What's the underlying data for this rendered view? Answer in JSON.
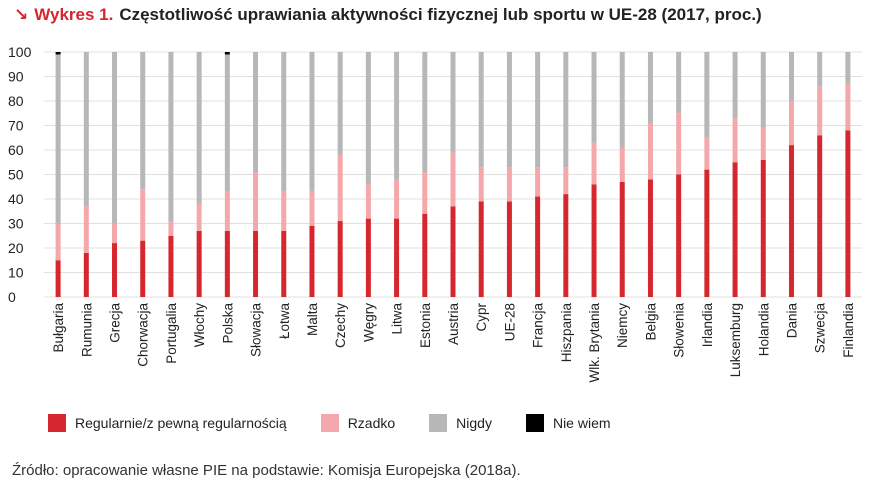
{
  "title": {
    "arrow": "↘",
    "label": "Wykres 1.",
    "text": "Częstotliwość uprawiania aktywności fizycznej lub sportu w UE-28 (2017, proc.)"
  },
  "source": "Źródło: opracowanie własne PIE na podstawie: Komisja Europejska (2018a).",
  "chart_data": {
    "type": "bar",
    "stacked": true,
    "categories": [
      "Bułgaria",
      "Rumunia",
      "Grecja",
      "Chorwacja",
      "Portugalia",
      "Włochy",
      "Polska",
      "Słowacja",
      "Łotwa",
      "Malta",
      "Czechy",
      "Węgry",
      "Litwa",
      "Estonia",
      "Austria",
      "Cypr",
      "UE-28",
      "Francja",
      "Hiszpania",
      "Wlk. Brytania",
      "Niemcy",
      "Belgia",
      "Słowenia",
      "Irlandia",
      "Luksemburg",
      "Holandia",
      "Dania",
      "Szwecja",
      "Finlandia"
    ],
    "series": [
      {
        "name": "Regularnie/z pewną regularnością",
        "color": "#d6262e",
        "values": [
          15,
          18,
          22,
          23,
          25,
          27,
          27,
          27,
          27,
          29,
          31,
          32,
          32,
          34,
          37,
          39,
          39,
          41,
          42,
          46,
          47,
          48,
          50,
          52,
          55,
          56,
          62,
          66,
          68
        ]
      },
      {
        "name": "Rzadko",
        "color": "#f4a8ab",
        "values": [
          15,
          19,
          8,
          21,
          6,
          11,
          16,
          24,
          16,
          14,
          27,
          14,
          16,
          17,
          22,
          14,
          14,
          12,
          11,
          17,
          14,
          23,
          25,
          13,
          18,
          13,
          18,
          20,
          19
        ]
      },
      {
        "name": "Nigdy",
        "color": "#b7b7b7",
        "values": [
          69,
          63,
          70,
          56,
          69,
          62,
          56,
          49,
          57,
          57,
          42,
          54,
          52,
          49,
          41,
          47,
          47,
          47,
          47,
          37,
          39,
          29,
          25,
          35,
          27,
          31,
          20,
          14,
          13
        ]
      },
      {
        "name": "Nie wiem",
        "color": "#000000",
        "values": [
          1,
          0,
          0,
          0,
          0,
          0,
          1,
          0,
          0,
          0,
          0,
          0,
          0,
          0,
          0,
          0,
          0,
          0,
          0,
          0,
          0,
          0,
          0,
          0,
          0,
          0,
          0,
          0,
          0
        ]
      }
    ],
    "yticks": [
      0,
      10,
      20,
      30,
      40,
      50,
      60,
      70,
      80,
      90,
      100
    ],
    "ylim": [
      0,
      100
    ],
    "grid": true,
    "legend": "bottom"
  }
}
